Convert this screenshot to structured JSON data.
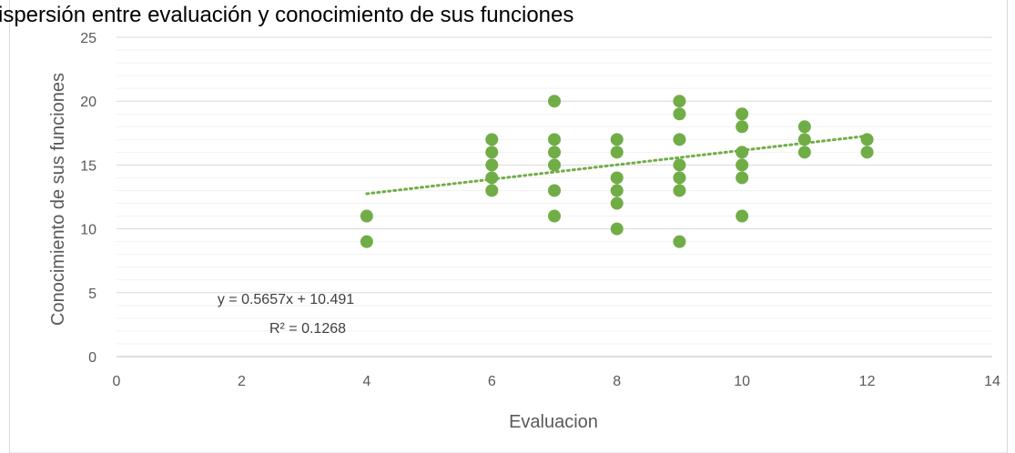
{
  "chart_data": {
    "type": "scatter",
    "title": "ispersión entre evaluación y conocimiento de sus funciones",
    "xlabel": "Evaluacion",
    "ylabel": "Conocimiento de sus funciones",
    "xlim": [
      0,
      14
    ],
    "ylim": [
      0,
      25
    ],
    "x_ticks": [
      0,
      2,
      4,
      6,
      8,
      10,
      12,
      14
    ],
    "y_ticks": [
      0,
      5,
      10,
      15,
      20,
      25
    ],
    "grid": "major and minor horizontal gridlines",
    "legend": "none",
    "marker_color": "#70AD47",
    "points": [
      {
        "x": 4,
        "y": 11
      },
      {
        "x": 4,
        "y": 9
      },
      {
        "x": 6,
        "y": 17
      },
      {
        "x": 6,
        "y": 16
      },
      {
        "x": 6,
        "y": 15
      },
      {
        "x": 6,
        "y": 14
      },
      {
        "x": 6,
        "y": 13
      },
      {
        "x": 7,
        "y": 20
      },
      {
        "x": 7,
        "y": 17
      },
      {
        "x": 7,
        "y": 16
      },
      {
        "x": 7,
        "y": 15
      },
      {
        "x": 7,
        "y": 13
      },
      {
        "x": 7,
        "y": 11
      },
      {
        "x": 8,
        "y": 17
      },
      {
        "x": 8,
        "y": 16
      },
      {
        "x": 8,
        "y": 14
      },
      {
        "x": 8,
        "y": 13
      },
      {
        "x": 8,
        "y": 12
      },
      {
        "x": 8,
        "y": 10
      },
      {
        "x": 9,
        "y": 20
      },
      {
        "x": 9,
        "y": 19
      },
      {
        "x": 9,
        "y": 17
      },
      {
        "x": 9,
        "y": 15
      },
      {
        "x": 9,
        "y": 14
      },
      {
        "x": 9,
        "y": 13
      },
      {
        "x": 9,
        "y": 9
      },
      {
        "x": 10,
        "y": 19
      },
      {
        "x": 10,
        "y": 18
      },
      {
        "x": 10,
        "y": 16
      },
      {
        "x": 10,
        "y": 15
      },
      {
        "x": 10,
        "y": 14
      },
      {
        "x": 10,
        "y": 11
      },
      {
        "x": 11,
        "y": 18
      },
      {
        "x": 11,
        "y": 17
      },
      {
        "x": 11,
        "y": 16
      },
      {
        "x": 12,
        "y": 17
      },
      {
        "x": 12,
        "y": 16
      }
    ],
    "trendline": {
      "type": "linear",
      "slope": 0.5657,
      "intercept": 10.491,
      "x_range": [
        4,
        12
      ],
      "style": "dotted",
      "color": "#70AD47",
      "equation_label": "y = 0.5657x + 10.491",
      "r2_label": "R² = 0.1268"
    }
  }
}
